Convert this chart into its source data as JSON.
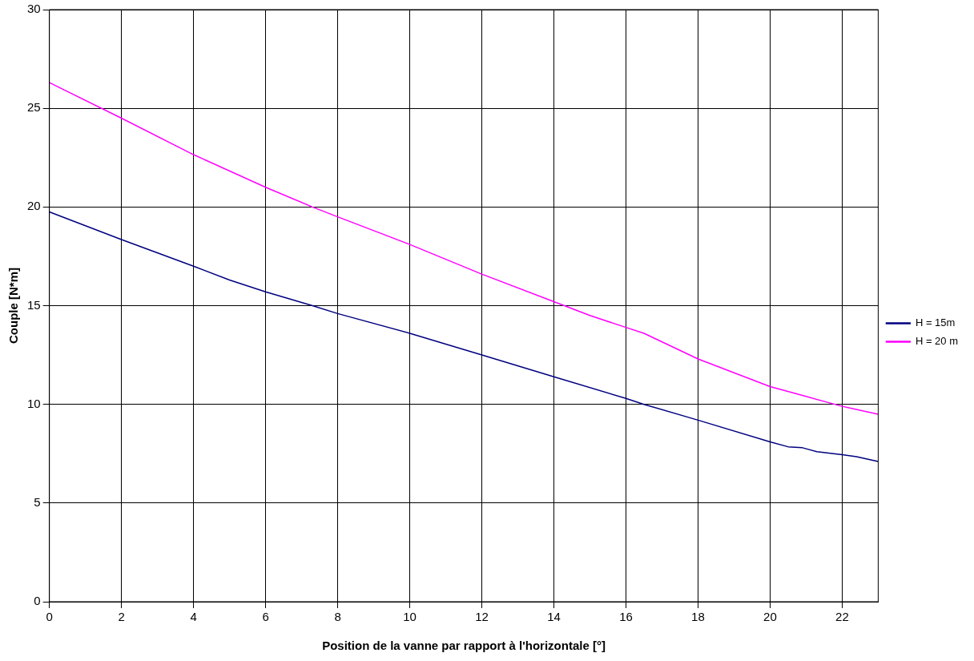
{
  "chart_data": {
    "type": "line",
    "xlabel": "Position de la vanne par rapport à l'horizontale [°]",
    "ylabel": "Couple [N*m]",
    "xlim": [
      0,
      23
    ],
    "xticks": [
      0,
      2,
      4,
      6,
      8,
      10,
      12,
      14,
      16,
      18,
      20,
      22
    ],
    "ylim": [
      0,
      30
    ],
    "yticks": [
      0,
      5,
      10,
      15,
      20,
      25,
      30
    ],
    "grid": true,
    "legend": "right",
    "marker": "none",
    "line_style": "solid",
    "series": [
      {
        "name": "H = 15m",
        "color": "#000080",
        "x": [
          0,
          2,
          4,
          5,
          6,
          7.3,
          8,
          10,
          12,
          14,
          16,
          16.5,
          18,
          20,
          20.5,
          20.9,
          21.3,
          22,
          22.4,
          23
        ],
        "values": [
          19.75,
          18.35,
          17.0,
          16.3,
          15.7,
          15.0,
          14.6,
          13.6,
          12.5,
          11.4,
          10.3,
          10.0,
          9.2,
          8.1,
          7.85,
          7.8,
          7.6,
          7.45,
          7.35,
          7.1
        ]
      },
      {
        "name": "H = 20 m",
        "color": "#ff00ff",
        "x": [
          0,
          2,
          4,
          6,
          7.3,
          8,
          10,
          12,
          14,
          15,
          16,
          16.5,
          18,
          20,
          21,
          22,
          23
        ],
        "values": [
          26.3,
          24.5,
          22.65,
          21.0,
          20.0,
          19.5,
          18.1,
          16.6,
          15.2,
          14.5,
          13.9,
          13.6,
          12.3,
          10.9,
          10.4,
          9.9,
          9.5
        ]
      }
    ]
  }
}
